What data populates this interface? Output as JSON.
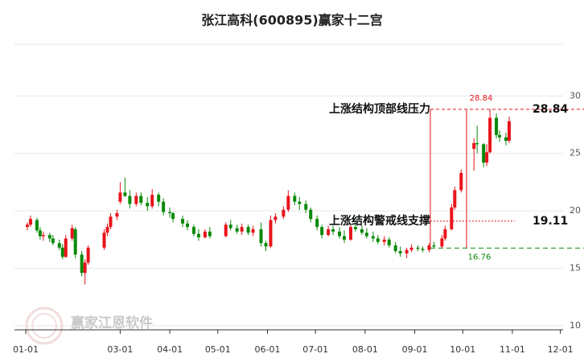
{
  "chart_data": {
    "type": "candlestick",
    "title": "张江高科(600895)赢家十二宫",
    "watermark": "赢家江恩软件",
    "x": [
      "01-02",
      "01-04",
      "01-08",
      "01-10",
      "01-12",
      "01-16",
      "01-18",
      "01-22",
      "01-24",
      "01-26",
      "01-30",
      "02-01",
      "02-05",
      "02-07",
      "02-09",
      "02-19",
      "02-21",
      "02-23",
      "02-27",
      "03-01",
      "03-04",
      "03-07",
      "03-11",
      "03-14",
      "03-18",
      "03-21",
      "03-25",
      "03-28",
      "04-01",
      "04-03",
      "04-09",
      "04-12",
      "04-16",
      "04-19",
      "04-23",
      "04-26",
      "05-06",
      "05-09",
      "05-13",
      "05-16",
      "05-20",
      "05-23",
      "05-28",
      "05-31",
      "06-03",
      "06-06",
      "06-11",
      "06-14",
      "06-18",
      "06-21",
      "06-25",
      "06-28",
      "07-02",
      "07-05",
      "07-09",
      "07-12",
      "07-16",
      "07-19",
      "07-23",
      "07-26",
      "07-30",
      "08-02",
      "08-06",
      "08-09",
      "08-13",
      "08-16",
      "08-20",
      "08-23",
      "08-27",
      "08-30",
      "09-03",
      "09-06",
      "09-10",
      "09-13",
      "09-18",
      "09-20",
      "09-24",
      "09-26",
      "09-30",
      "10-08",
      "10-10",
      "10-14",
      "10-16",
      "10-18",
      "10-22",
      "10-24",
      "10-28",
      "10-30"
    ],
    "open": [
      18.6,
      18.8,
      19.2,
      18.3,
      17.8,
      17.9,
      17.6,
      17.2,
      16.8,
      16.0,
      17.6,
      18.4,
      16.2,
      14.6,
      15.5,
      16.8,
      18.1,
      18.6,
      19.5,
      20.8,
      21.6,
      21.3,
      20.6,
      21.3,
      20.7,
      20.4,
      21.4,
      20.8,
      19.9,
      19.8,
      19.3,
      18.9,
      18.6,
      18.0,
      17.7,
      18.2,
      17.8,
      18.8,
      18.5,
      18.2,
      18.6,
      18.1,
      18.4,
      17.2,
      16.9,
      19.2,
      19.5,
      20.1,
      21.3,
      20.8,
      20.6,
      20.1,
      19.3,
      18.6,
      17.9,
      18.4,
      18.2,
      17.8,
      17.5,
      18.6,
      18.4,
      18.1,
      17.8,
      17.6,
      17.3,
      17.5,
      17.0,
      16.5,
      16.3,
      16.6,
      16.8,
      16.7,
      16.6,
      17.0,
      16.9,
      17.6,
      18.4,
      20.3,
      21.8,
      25.4,
      25.9,
      25.8,
      24.2,
      25.1,
      28.1,
      26.6,
      26.4,
      26.1
    ],
    "high": [
      19.0,
      19.6,
      19.4,
      18.6,
      18.2,
      18.1,
      17.9,
      17.5,
      17.1,
      17.9,
      18.8,
      18.6,
      16.5,
      15.8,
      17.0,
      18.4,
      18.9,
      19.8,
      20.1,
      22.5,
      22.9,
      21.8,
      21.6,
      21.6,
      21.2,
      21.9,
      21.6,
      21.1,
      20.3,
      19.9,
      19.6,
      19.2,
      18.8,
      18.4,
      18.4,
      18.6,
      19.0,
      19.2,
      18.8,
      18.9,
      18.8,
      18.7,
      19.0,
      17.4,
      19.6,
      19.8,
      20.4,
      21.8,
      21.6,
      21.2,
      20.9,
      20.3,
      19.6,
      18.8,
      18.7,
      18.7,
      18.6,
      18.3,
      18.9,
      19.2,
      18.7,
      18.5,
      18.2,
      17.9,
      17.8,
      17.7,
      17.3,
      16.9,
      16.8,
      17.1,
      17.0,
      16.9,
      17.2,
      17.3,
      17.9,
      18.7,
      20.6,
      22.1,
      23.6,
      26.3,
      27.4,
      25.9,
      25.8,
      28.84,
      28.5,
      27.0,
      26.8,
      28.2
    ],
    "low": [
      18.3,
      18.6,
      18.1,
      17.5,
      17.4,
      17.3,
      17.0,
      16.6,
      15.8,
      15.9,
      17.4,
      15.9,
      14.3,
      13.6,
      15.3,
      16.6,
      17.8,
      18.4,
      19.2,
      20.6,
      21.2,
      20.2,
      20.4,
      20.5,
      20.0,
      20.2,
      20.4,
      19.6,
      19.4,
      19.0,
      18.6,
      18.3,
      17.8,
      17.4,
      17.6,
      17.6,
      17.7,
      18.3,
      18.0,
      17.9,
      17.9,
      17.8,
      16.9,
      16.5,
      16.8,
      18.9,
      19.3,
      19.9,
      20.5,
      20.1,
      19.8,
      19.0,
      18.3,
      17.6,
      17.8,
      17.9,
      17.6,
      17.2,
      17.4,
      18.2,
      17.9,
      17.6,
      17.3,
      17.1,
      17.0,
      16.8,
      16.3,
      16.0,
      15.9,
      16.4,
      16.5,
      16.4,
      16.4,
      16.8,
      16.76,
      17.4,
      18.3,
      20.1,
      21.6,
      23.5,
      25.0,
      23.8,
      23.9,
      25.0,
      26.3,
      26.0,
      25.7,
      25.9
    ],
    "close": [
      18.8,
      19.3,
      18.3,
      17.8,
      17.9,
      17.6,
      17.2,
      16.8,
      16.0,
      17.6,
      18.5,
      16.2,
      14.6,
      15.5,
      16.8,
      18.1,
      18.6,
      19.5,
      19.8,
      21.6,
      21.3,
      20.6,
      21.3,
      20.7,
      20.4,
      21.4,
      20.8,
      19.9,
      19.8,
      19.3,
      18.9,
      18.6,
      18.0,
      17.7,
      18.2,
      17.8,
      18.8,
      18.5,
      18.2,
      18.6,
      18.1,
      18.4,
      17.2,
      16.9,
      19.2,
      19.5,
      20.1,
      21.3,
      20.8,
      20.6,
      20.1,
      19.3,
      18.6,
      17.9,
      18.4,
      18.2,
      17.8,
      17.5,
      18.6,
      18.4,
      18.1,
      17.8,
      17.6,
      17.3,
      17.5,
      17.0,
      16.5,
      16.3,
      16.6,
      16.8,
      16.7,
      16.6,
      17.0,
      16.9,
      17.6,
      18.4,
      20.3,
      21.8,
      23.3,
      25.9,
      25.8,
      24.2,
      25.1,
      28.1,
      26.6,
      26.4,
      26.1,
      27.8
    ],
    "up_color": "#e8141b",
    "down_color": "#0a8a0a",
    "xticks": [
      "01-01",
      "03-01",
      "04-01",
      "05-01",
      "06-01",
      "07-01",
      "08-01",
      "09-01",
      "10-01",
      "11-01",
      "12-01"
    ],
    "ylim": [
      9.65,
      34.5
    ],
    "yticks": [
      10,
      15,
      20,
      25,
      30
    ],
    "grid": true,
    "annotations": {
      "resistance": {
        "label": "上涨结构顶部线压力",
        "value": 28.84
      },
      "support": {
        "label": "上涨结构警戒线支撑",
        "value": 19.11
      },
      "high": {
        "value": 28.84
      },
      "low": {
        "value": 16.76
      }
    }
  }
}
